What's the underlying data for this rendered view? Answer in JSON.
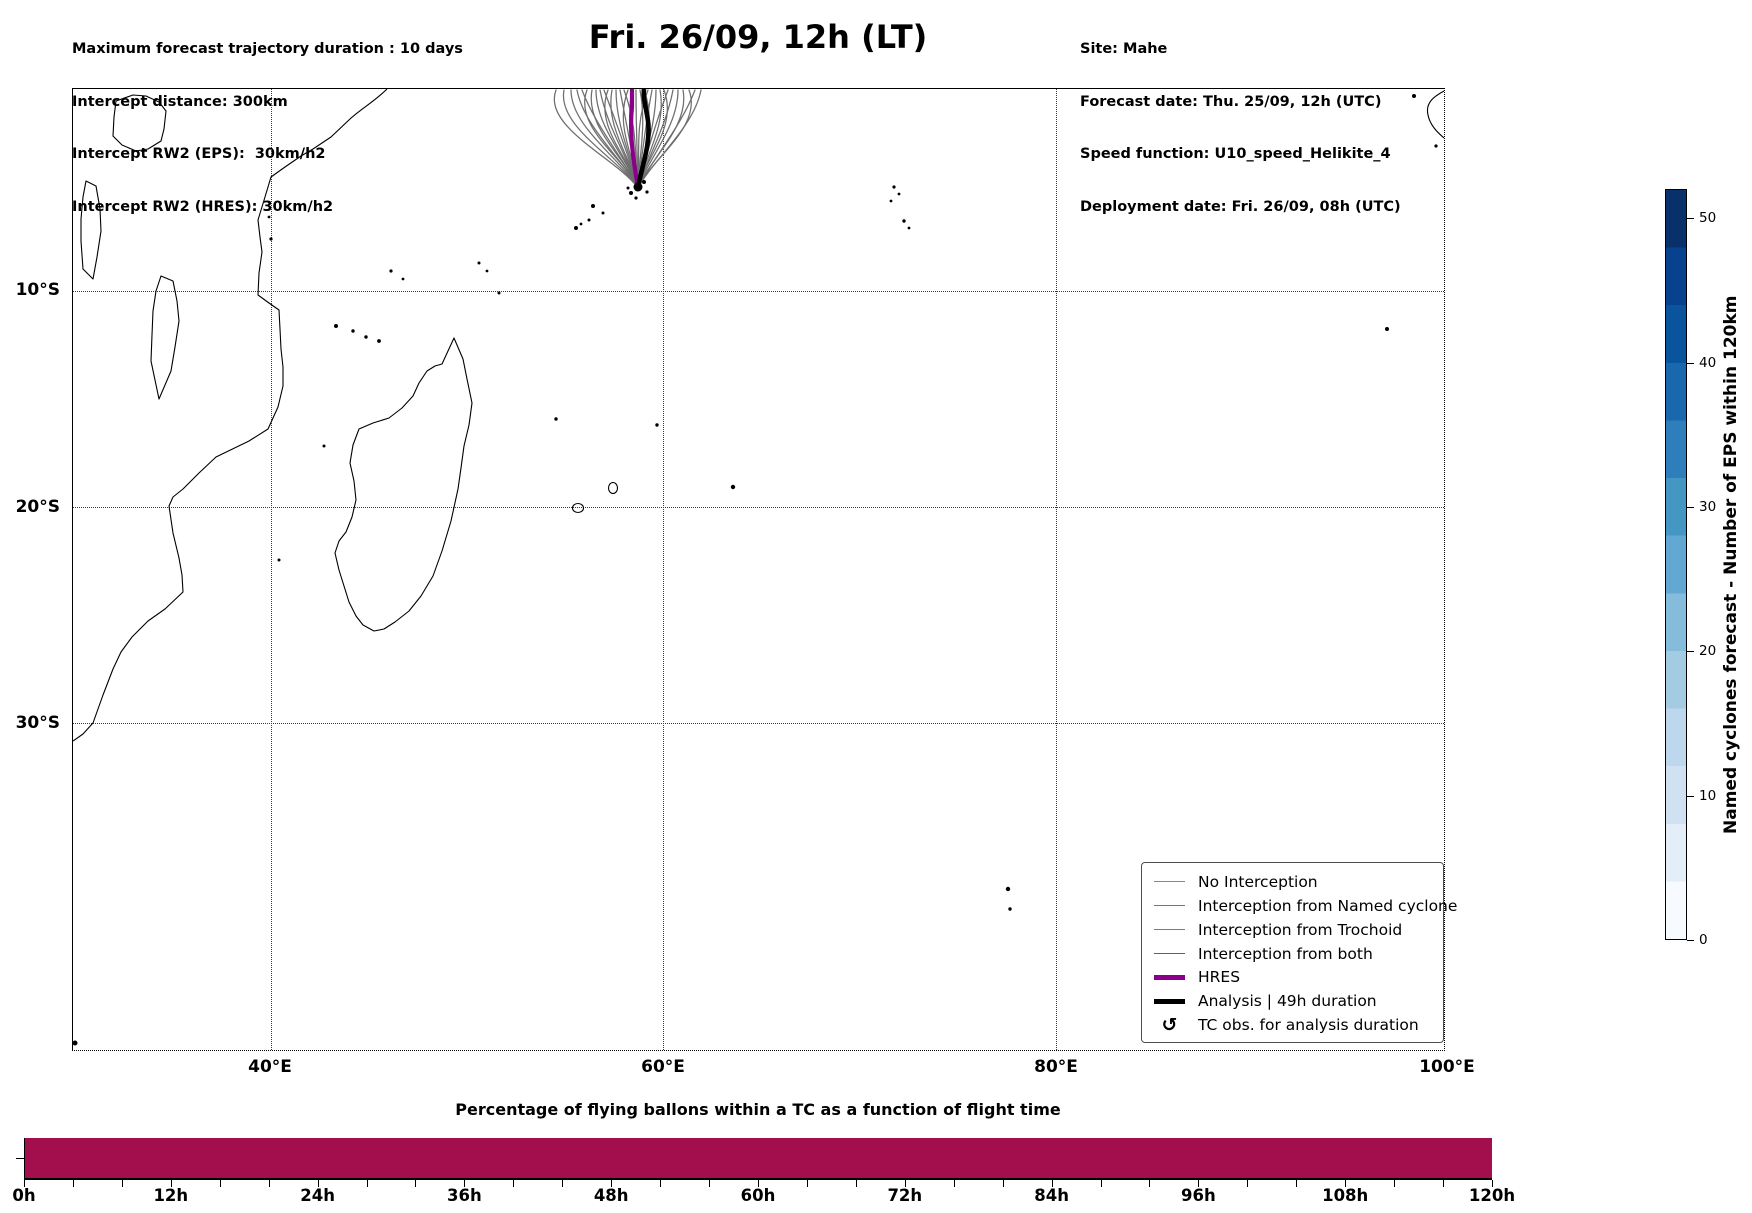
{
  "header": {
    "info_left": [
      "Maximum forecast trajectory duration : 10 days",
      "Intercept distance: 300km",
      "Intercept RW2 (EPS):  30km/h2",
      "Intercept RW2 (HRES): 30km/h2"
    ],
    "title": "Fri. 26/09, 12h (LT)",
    "info_right": [
      "Site: Mahe",
      "Forecast date: Thu. 25/09, 12h (UTC)",
      "Speed function: U10_speed_Helikite_4",
      "Deployment date: Fri. 26/09, 08h (UTC)"
    ]
  },
  "map": {
    "x_tick_labels": {
      "t40": "40°E",
      "t60": "60°E",
      "t80": "80°E",
      "t100": "100°E"
    },
    "y_tick_labels": {
      "t10": "10°S",
      "t20": "20°S",
      "t30": "30°S"
    },
    "site_name": "Mahe",
    "trajectory_color": "#6e6e6e",
    "hres_color": "#8B008B",
    "analysis_color": "#000000"
  },
  "legend": {
    "items": [
      {
        "label": "No Interception",
        "color": "#888888",
        "weight": "thin"
      },
      {
        "label": "Interception from Named cyclone",
        "color": "#FF4500",
        "weight": "thin"
      },
      {
        "label": "Interception from Trochoid",
        "color": "#8B8B00",
        "weight": "thin"
      },
      {
        "label": "Interception from both",
        "color": "#228B22",
        "weight": "thin"
      },
      {
        "label": "HRES",
        "color": "#8B008B",
        "weight": "thick"
      },
      {
        "label": "Analysis | 49h duration",
        "color": "#000000",
        "weight": "thick"
      },
      {
        "label": "TC obs. for analysis duration",
        "symbol": "↺"
      }
    ]
  },
  "colorbar": {
    "label": "Named cyclones forecast - Number of EPS within 120km",
    "ticks": [
      "0",
      "10",
      "20",
      "30",
      "40",
      "50"
    ],
    "vmin": 0,
    "vmax": 52,
    "colormap": "Blues",
    "n_segments": 13
  },
  "bottom_chart": {
    "title": "Percentage of flying ballons within a TC as a function of flight time",
    "x_ticks": [
      "0h",
      "12h",
      "24h",
      "36h",
      "48h",
      "60h",
      "72h",
      "84h",
      "96h",
      "108h",
      "120h"
    ],
    "bar_color": "#A30F4C"
  },
  "chart_data": [
    {
      "type": "map",
      "title": "Fri. 26/09, 12h (LT)",
      "extent": {
        "lon": [
          30,
          100
        ],
        "lat": [
          0,
          -45
        ]
      },
      "x_ticks": [
        "40°E",
        "60°E",
        "80°E",
        "100°E"
      ],
      "y_ticks": [
        "10°S",
        "20°S",
        "30°S"
      ],
      "grid": "dotted",
      "content": "Ensemble balloon trajectories (No Interception, gray) fanning north from launch site Mahe (~55.5E, 4.7S) to the top map edge; thick purple HRES track and thick black Analysis track in bundle center; black observation cluster at site; coastlines of East Africa, Madagascar and scattered Indian Ocean islands.",
      "legend_position": "lower right",
      "colorbar": {
        "label": "Named cyclones forecast - Number of EPS within 120km",
        "range": [
          0,
          52
        ],
        "ticks": [
          0,
          10,
          20,
          30,
          40,
          50
        ],
        "colormap": "Blues",
        "segments": 13
      }
    },
    {
      "type": "bar",
      "title": "Percentage of flying ballons within a TC as a function of flight time",
      "categories": [
        "0h",
        "12h",
        "24h",
        "36h",
        "48h",
        "60h",
        "72h",
        "84h",
        "96h",
        "108h",
        "120h"
      ],
      "x_range_hours": [
        0,
        120
      ],
      "values_note": "single uniform full-height crimson bar spanning 0h-120h; y axis unlabeled",
      "values": [
        100,
        100,
        100,
        100,
        100,
        100,
        100,
        100,
        100,
        100,
        100
      ],
      "bar_color": "#A30F4C"
    }
  ]
}
